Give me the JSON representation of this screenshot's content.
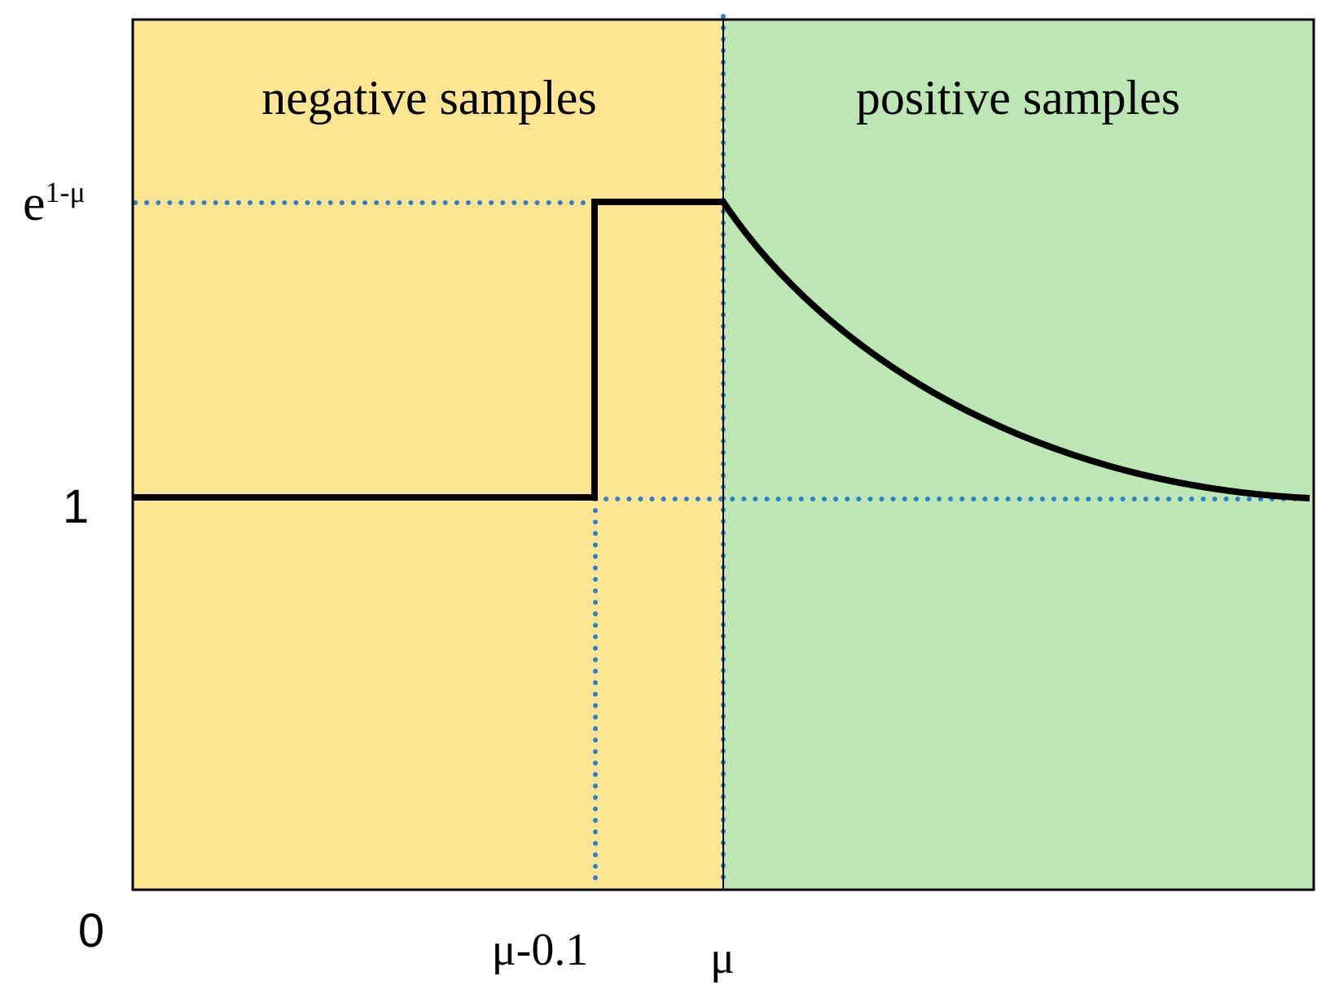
{
  "regions": {
    "negative": {
      "label": "negative samples",
      "color": "#fde592"
    },
    "positive": {
      "label": "positive samples",
      "color": "#bce6b3"
    }
  },
  "y_ticks": {
    "top_base": "e",
    "top_exponent": "1-μ",
    "one": "1",
    "zero": "0"
  },
  "x_ticks": {
    "mu_minus": "μ-0.1",
    "mu": "μ"
  },
  "colors": {
    "curve": "#000000",
    "guide": "#2f7fcf",
    "frame": "#000000"
  }
}
